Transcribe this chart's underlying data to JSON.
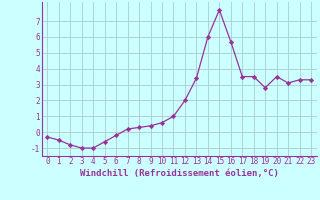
{
  "x": [
    0,
    1,
    2,
    3,
    4,
    5,
    6,
    7,
    8,
    9,
    10,
    11,
    12,
    13,
    14,
    15,
    16,
    17,
    18,
    19,
    20,
    21,
    22,
    23
  ],
  "y": [
    -0.3,
    -0.5,
    -0.8,
    -1.0,
    -1.0,
    -0.6,
    -0.2,
    0.2,
    0.3,
    0.4,
    0.6,
    1.0,
    2.0,
    3.4,
    6.0,
    7.7,
    5.7,
    3.5,
    3.5,
    2.8,
    3.5,
    3.1,
    3.3,
    3.3
  ],
  "line_color": "#993399",
  "marker": "D",
  "marker_size": 2.2,
  "bg_color": "#ccffff",
  "grid_color": "#aacccc",
  "xlabel": "Windchill (Refroidissement éolien,°C)",
  "xlabel_color": "#993399",
  "tick_color": "#993399",
  "ylim": [
    -1.5,
    8.2
  ],
  "xlim": [
    -0.5,
    23.5
  ],
  "yticks": [
    -1,
    0,
    1,
    2,
    3,
    4,
    5,
    6,
    7
  ],
  "xticks": [
    0,
    1,
    2,
    3,
    4,
    5,
    6,
    7,
    8,
    9,
    10,
    11,
    12,
    13,
    14,
    15,
    16,
    17,
    18,
    19,
    20,
    21,
    22,
    23
  ],
  "tick_fontsize": 5.5,
  "xlabel_fontsize": 6.5,
  "ylabel_fontsize": 6
}
